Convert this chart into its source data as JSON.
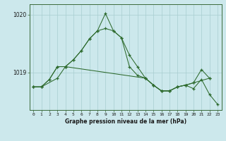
{
  "hours": [
    0,
    1,
    2,
    3,
    4,
    5,
    6,
    7,
    8,
    9,
    10,
    11,
    12,
    13,
    14,
    15,
    16,
    17,
    18,
    19,
    20,
    21,
    22,
    23
  ],
  "series1": [
    1018.75,
    1018.75,
    null,
    1018.9,
    1019.1,
    null,
    null,
    null,
    null,
    null,
    null,
    null,
    null,
    null,
    1018.9,
    1018.78,
    1018.68,
    1018.68,
    1018.75,
    1018.78,
    1018.82,
    null,
    1018.9,
    null
  ],
  "series2": [
    1018.75,
    1018.75,
    1018.88,
    1019.1,
    1019.1,
    1019.22,
    1019.38,
    1019.58,
    1019.72,
    1019.76,
    1019.72,
    1019.6,
    1019.3,
    1019.1,
    1018.9,
    1018.78,
    1018.68,
    1018.68,
    1018.75,
    1018.78,
    1018.82,
    1019.05,
    1018.9,
    null
  ],
  "series3": [
    1018.75,
    1018.75,
    1018.88,
    1019.1,
    1019.1,
    1019.22,
    1019.38,
    1019.58,
    1019.72,
    1020.02,
    1019.72,
    1019.6,
    1019.1,
    1018.95,
    1018.9,
    1018.78,
    1018.68,
    1018.68,
    1018.75,
    1018.78,
    1018.72,
    1018.88,
    1018.62,
    1018.45
  ],
  "line_color": "#2d6a2d",
  "bg_color": "#cce8ec",
  "grid_color": "#a8cdd0",
  "xlabel": "Graphe pression niveau de la mer (hPa)",
  "ytick_labels": [
    "1019",
    "1020"
  ],
  "ytick_vals": [
    1019.0,
    1020.0
  ],
  "ylim": [
    1018.35,
    1020.18
  ],
  "xlim": [
    -0.5,
    23.5
  ]
}
